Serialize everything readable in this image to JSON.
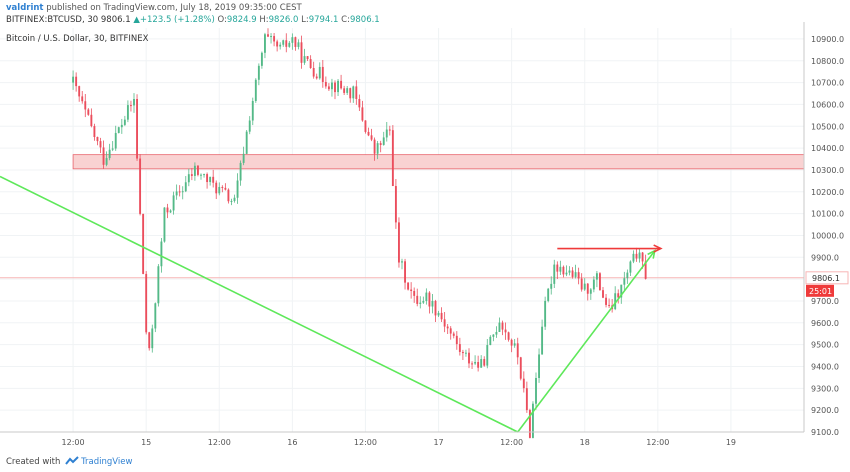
{
  "header": {
    "author": "valdrint",
    "published": "published on TradingView.com, July 18, 2019 09:35:00 CEST",
    "symbol": "BITFINEX:BTCUSD, 30",
    "last": "9806.1",
    "arrow": "▲",
    "change": "+123.5 (+1.28%)",
    "o_label": "O:",
    "o_val": "9824.9",
    "h_label": "H:",
    "h_val": "9826.0",
    "l_label": "L:",
    "l_val": "9794.1",
    "c_label": "C:",
    "c_val": "9806.1"
  },
  "footer": {
    "created_with": "Created with",
    "brand": "TradingView"
  },
  "colors": {
    "bull": "#53b987",
    "bear": "#eb4d5c",
    "zone_fill": "#f9d2d2",
    "zone_stroke": "#e8646c",
    "support_line": "#5ee85a",
    "resistance": "#ef3a3a",
    "price_line": "#f7b6b6",
    "axis_label": "#555555"
  },
  "chart_data": {
    "type": "candlestick",
    "title": "Bitcoin / U.S. Dollar, 30, BITFINEX",
    "ylim": [
      9100,
      10950
    ],
    "y_ticks": [
      9100,
      9200,
      9300,
      9400,
      9500,
      9600,
      9700,
      9800,
      9900,
      10000,
      10100,
      10200,
      10300,
      10400,
      10500,
      10600,
      10700,
      10800,
      10900
    ],
    "y_tick_labels": [
      "9100.0",
      "9200.0",
      "9300.0",
      "9400.0",
      "9500.0",
      "9600.0",
      "9700.0",
      "9800.0",
      "9900.0",
      "10000.0",
      "10100.0",
      "10200.0",
      "10300.0",
      "10400.0",
      "10500.0",
      "10600.0",
      "10700.0",
      "10800.0",
      "10900.0"
    ],
    "x_range_hours": [
      -12,
      120
    ],
    "x_ticks": [
      {
        "h": 0,
        "label": "12:00"
      },
      {
        "h": 12,
        "label": "15"
      },
      {
        "h": 24,
        "label": "12:00"
      },
      {
        "h": 36,
        "label": "16"
      },
      {
        "h": 48,
        "label": "12:00"
      },
      {
        "h": 60,
        "label": "17"
      },
      {
        "h": 72,
        "label": "12:00"
      },
      {
        "h": 84,
        "label": "18"
      },
      {
        "h": 96,
        "label": "12:00"
      },
      {
        "h": 108,
        "label": "19"
      }
    ],
    "last_price": 9806.1,
    "last_price_label": "9806.1",
    "countdown_label": "25:01",
    "close_path": [
      [
        0,
        10700
      ],
      [
        5,
        10350
      ],
      [
        10,
        10620
      ],
      [
        12.3,
        9400
      ],
      [
        15,
        10100
      ],
      [
        20,
        10300
      ],
      [
        26.5,
        10150
      ],
      [
        29,
        10550
      ],
      [
        31.5,
        10900
      ],
      [
        34,
        10850
      ],
      [
        36,
        10900
      ],
      [
        38,
        10800
      ],
      [
        42,
        10700
      ],
      [
        46,
        10650
      ],
      [
        49.5,
        10380
      ],
      [
        52,
        10480
      ],
      [
        53.3,
        9900
      ],
      [
        56,
        9700
      ],
      [
        58,
        9720
      ],
      [
        60,
        9650
      ],
      [
        64,
        9450
      ],
      [
        67,
        9400
      ],
      [
        70,
        9620
      ],
      [
        73,
        9450
      ],
      [
        75,
        9100
      ],
      [
        77,
        9600
      ],
      [
        79,
        9870
      ],
      [
        82,
        9820
      ],
      [
        84,
        9750
      ],
      [
        86,
        9800
      ],
      [
        88,
        9650
      ],
      [
        90,
        9760
      ],
      [
        92.5,
        9920
      ],
      [
        94.3,
        9806.1
      ]
    ],
    "zone": {
      "x_start_h": 0,
      "x_end_h": 120,
      "y_low": 10305,
      "y_high": 10370
    },
    "support_line": {
      "x1_h": -12,
      "y1": 10270,
      "x2_h": 73,
      "y2": 9100
    },
    "uptrend_arrow": {
      "x1_h": 73,
      "y1": 9100,
      "x2_h": 95.5,
      "y2": 9930
    },
    "resistance_arrow": {
      "x1_h": 79.5,
      "y1": 9940,
      "x2_h": 96.5,
      "y2": 9940
    }
  }
}
